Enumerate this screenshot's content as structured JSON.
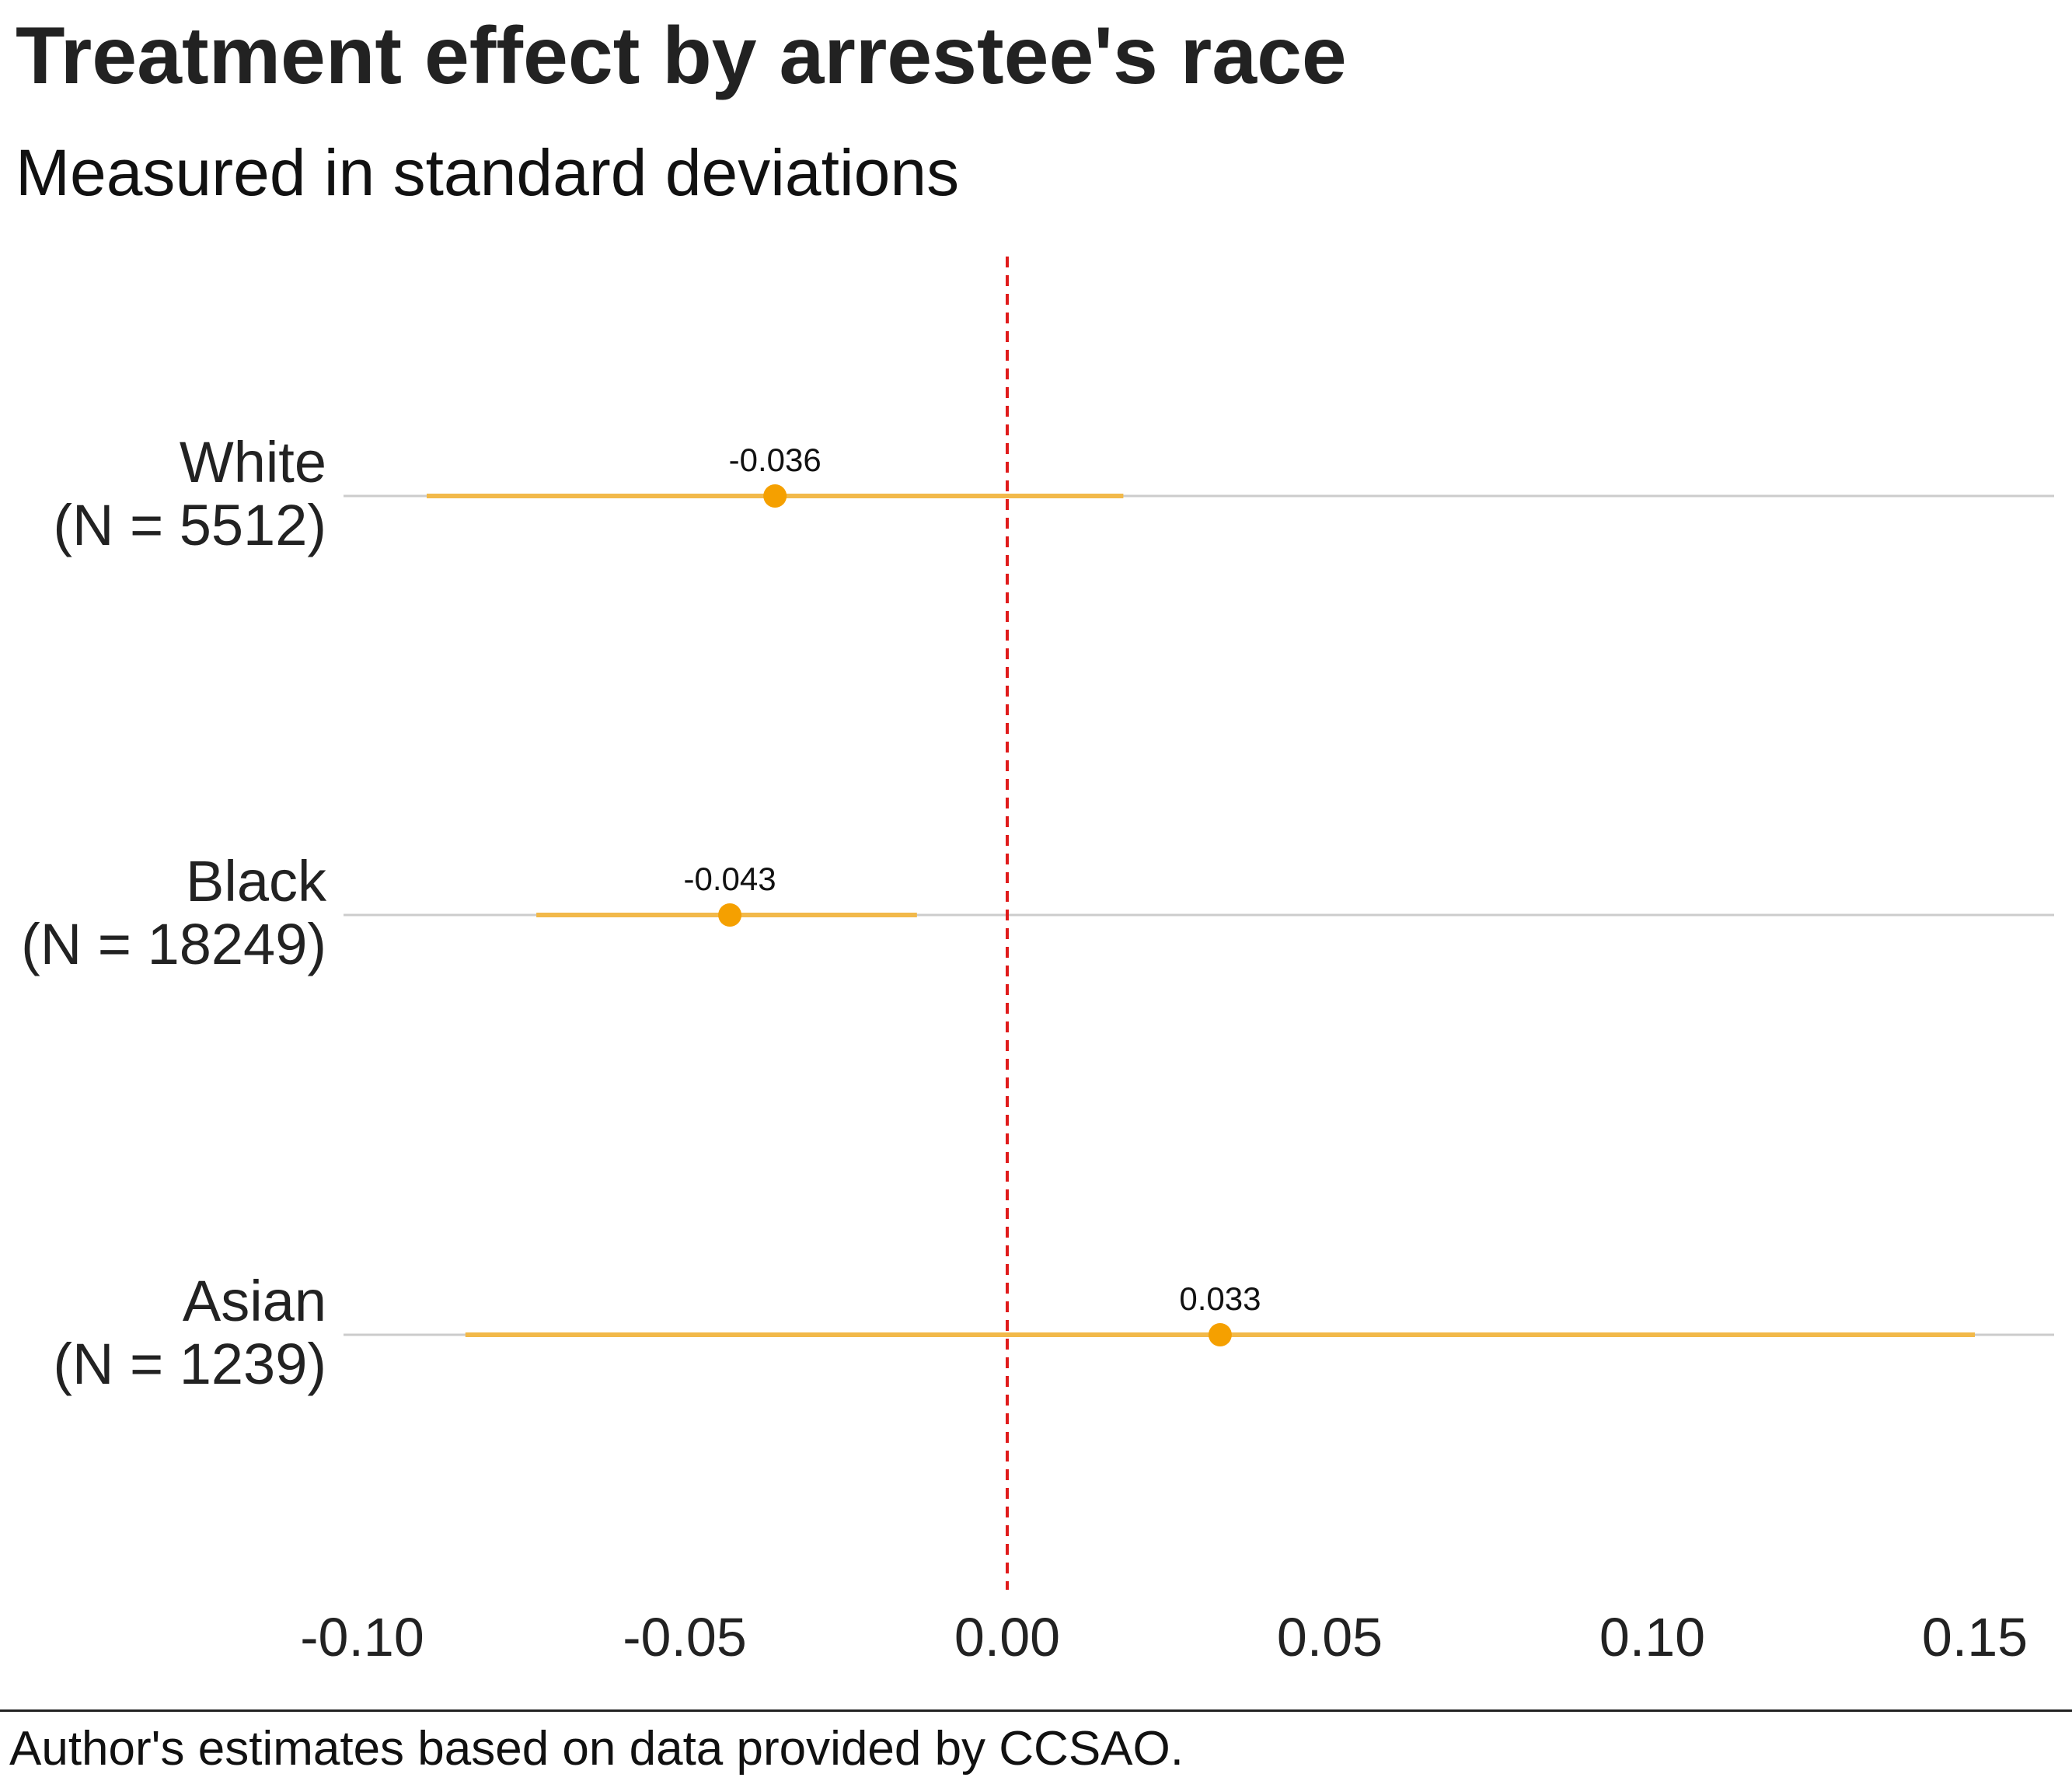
{
  "chart_data": {
    "type": "dot-and-interval",
    "title": "Treatment effect by arrestee's race",
    "subtitle": "Measured in standard deviations",
    "caption": "Author's estimates based on data provided by CCSAO.",
    "xlim": [
      -0.1,
      0.15
    ],
    "x_ticks": [
      -0.1,
      -0.05,
      0.0,
      0.05,
      0.1,
      0.15
    ],
    "x_tick_labels": [
      "-0.10",
      "-0.05",
      "0.00",
      "0.05",
      "0.10",
      "0.15"
    ],
    "reference_line": 0,
    "grid": "horizontal only",
    "groups": [
      {
        "label": "White",
        "n_label": "(N = 5512)",
        "estimate": -0.036,
        "estimate_label": "-0.036",
        "ci_low": -0.09,
        "ci_high": 0.018
      },
      {
        "label": "Black",
        "n_label": "(N = 18249)",
        "estimate": -0.043,
        "estimate_label": "-0.043",
        "ci_low": -0.073,
        "ci_high": -0.014
      },
      {
        "label": "Asian",
        "n_label": "(N = 1239)",
        "estimate": 0.033,
        "estimate_label": "0.033",
        "ci_low": -0.084,
        "ci_high": 0.15
      }
    ]
  },
  "colors": {
    "point": "#f5a000",
    "interval": "#f2b94a",
    "reference": "#e01b1b",
    "gridline": "#cccccc",
    "text": "#222222"
  }
}
